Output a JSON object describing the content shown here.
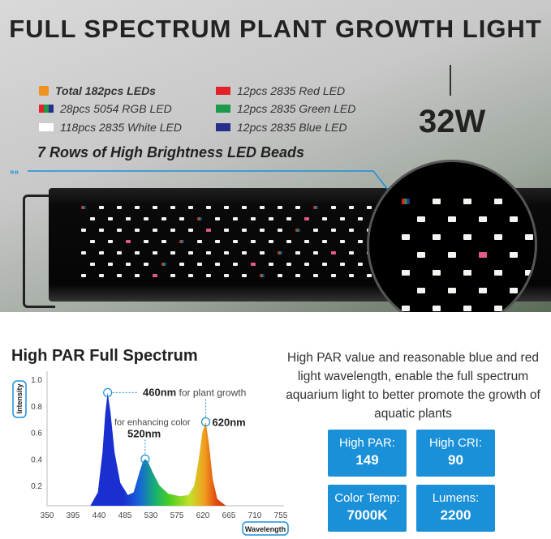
{
  "title": "FULL SPECTRUM PLANT GROWTH LIGHT",
  "legend": {
    "total": "Total 182pcs LEDs",
    "items": [
      {
        "label": "28pcs 5054 RGB LED",
        "color": "rgb"
      },
      {
        "label": "118pcs 2835 White LED",
        "color": "#ffffff"
      },
      {
        "label": "12pcs 2835 Red LED",
        "color": "#e32129"
      },
      {
        "label": "12pcs 2835 Green LED",
        "color": "#1a9a4a"
      },
      {
        "label": "12pcs 2835 Blue LED",
        "color": "#262f8c"
      }
    ]
  },
  "rows_text": "7 Rows of High Brightness LED Beads",
  "wattage": "32W",
  "chart_title": "High PAR Full Spectrum",
  "chart_data": {
    "type": "area",
    "xlabel": "Wavelength",
    "ylabel": "Intensity",
    "xticks": [
      350,
      395,
      440,
      485,
      530,
      575,
      620,
      665,
      710,
      755
    ],
    "yticks": [
      0.2,
      0.4,
      0.6,
      0.8,
      1.0
    ],
    "xlim": [
      350,
      755
    ],
    "ylim": [
      0,
      1.0
    ],
    "x": [
      405,
      425,
      438,
      446,
      451,
      455,
      460,
      467,
      477,
      490,
      500,
      510,
      516,
      520,
      525,
      533,
      545,
      560,
      580,
      595,
      605,
      613,
      619,
      625,
      631,
      637,
      645,
      660,
      690,
      730,
      755
    ],
    "y": [
      0,
      0.02,
      0.15,
      0.45,
      0.75,
      0.9,
      0.75,
      0.45,
      0.22,
      0.13,
      0.15,
      0.3,
      0.38,
      0.4,
      0.38,
      0.3,
      0.2,
      0.14,
      0.12,
      0.13,
      0.2,
      0.4,
      0.6,
      0.68,
      0.5,
      0.25,
      0.1,
      0.04,
      0.015,
      0.005,
      0
    ],
    "annotations": [
      {
        "x": 455,
        "y": 0.9,
        "bold": "460nm",
        "text": "for plant growth"
      },
      {
        "x": 520,
        "y": 0.4,
        "bold": "520nm",
        "text": "for enhancing color"
      },
      {
        "x": 625,
        "y": 0.68,
        "bold": "620nm",
        "text": ""
      }
    ]
  },
  "description": "High PAR value and reasonable blue and red light wavelength, enable the full spectrum aquarium light to better promote the growth of aquatic plants",
  "stats": [
    {
      "label": "High PAR:",
      "value": "149"
    },
    {
      "label": "High CRI:",
      "value": "90"
    },
    {
      "label": "Color Temp:",
      "value": "7000K"
    },
    {
      "label": "Lumens:",
      "value": "2200"
    }
  ],
  "accent": "#1a90d8"
}
